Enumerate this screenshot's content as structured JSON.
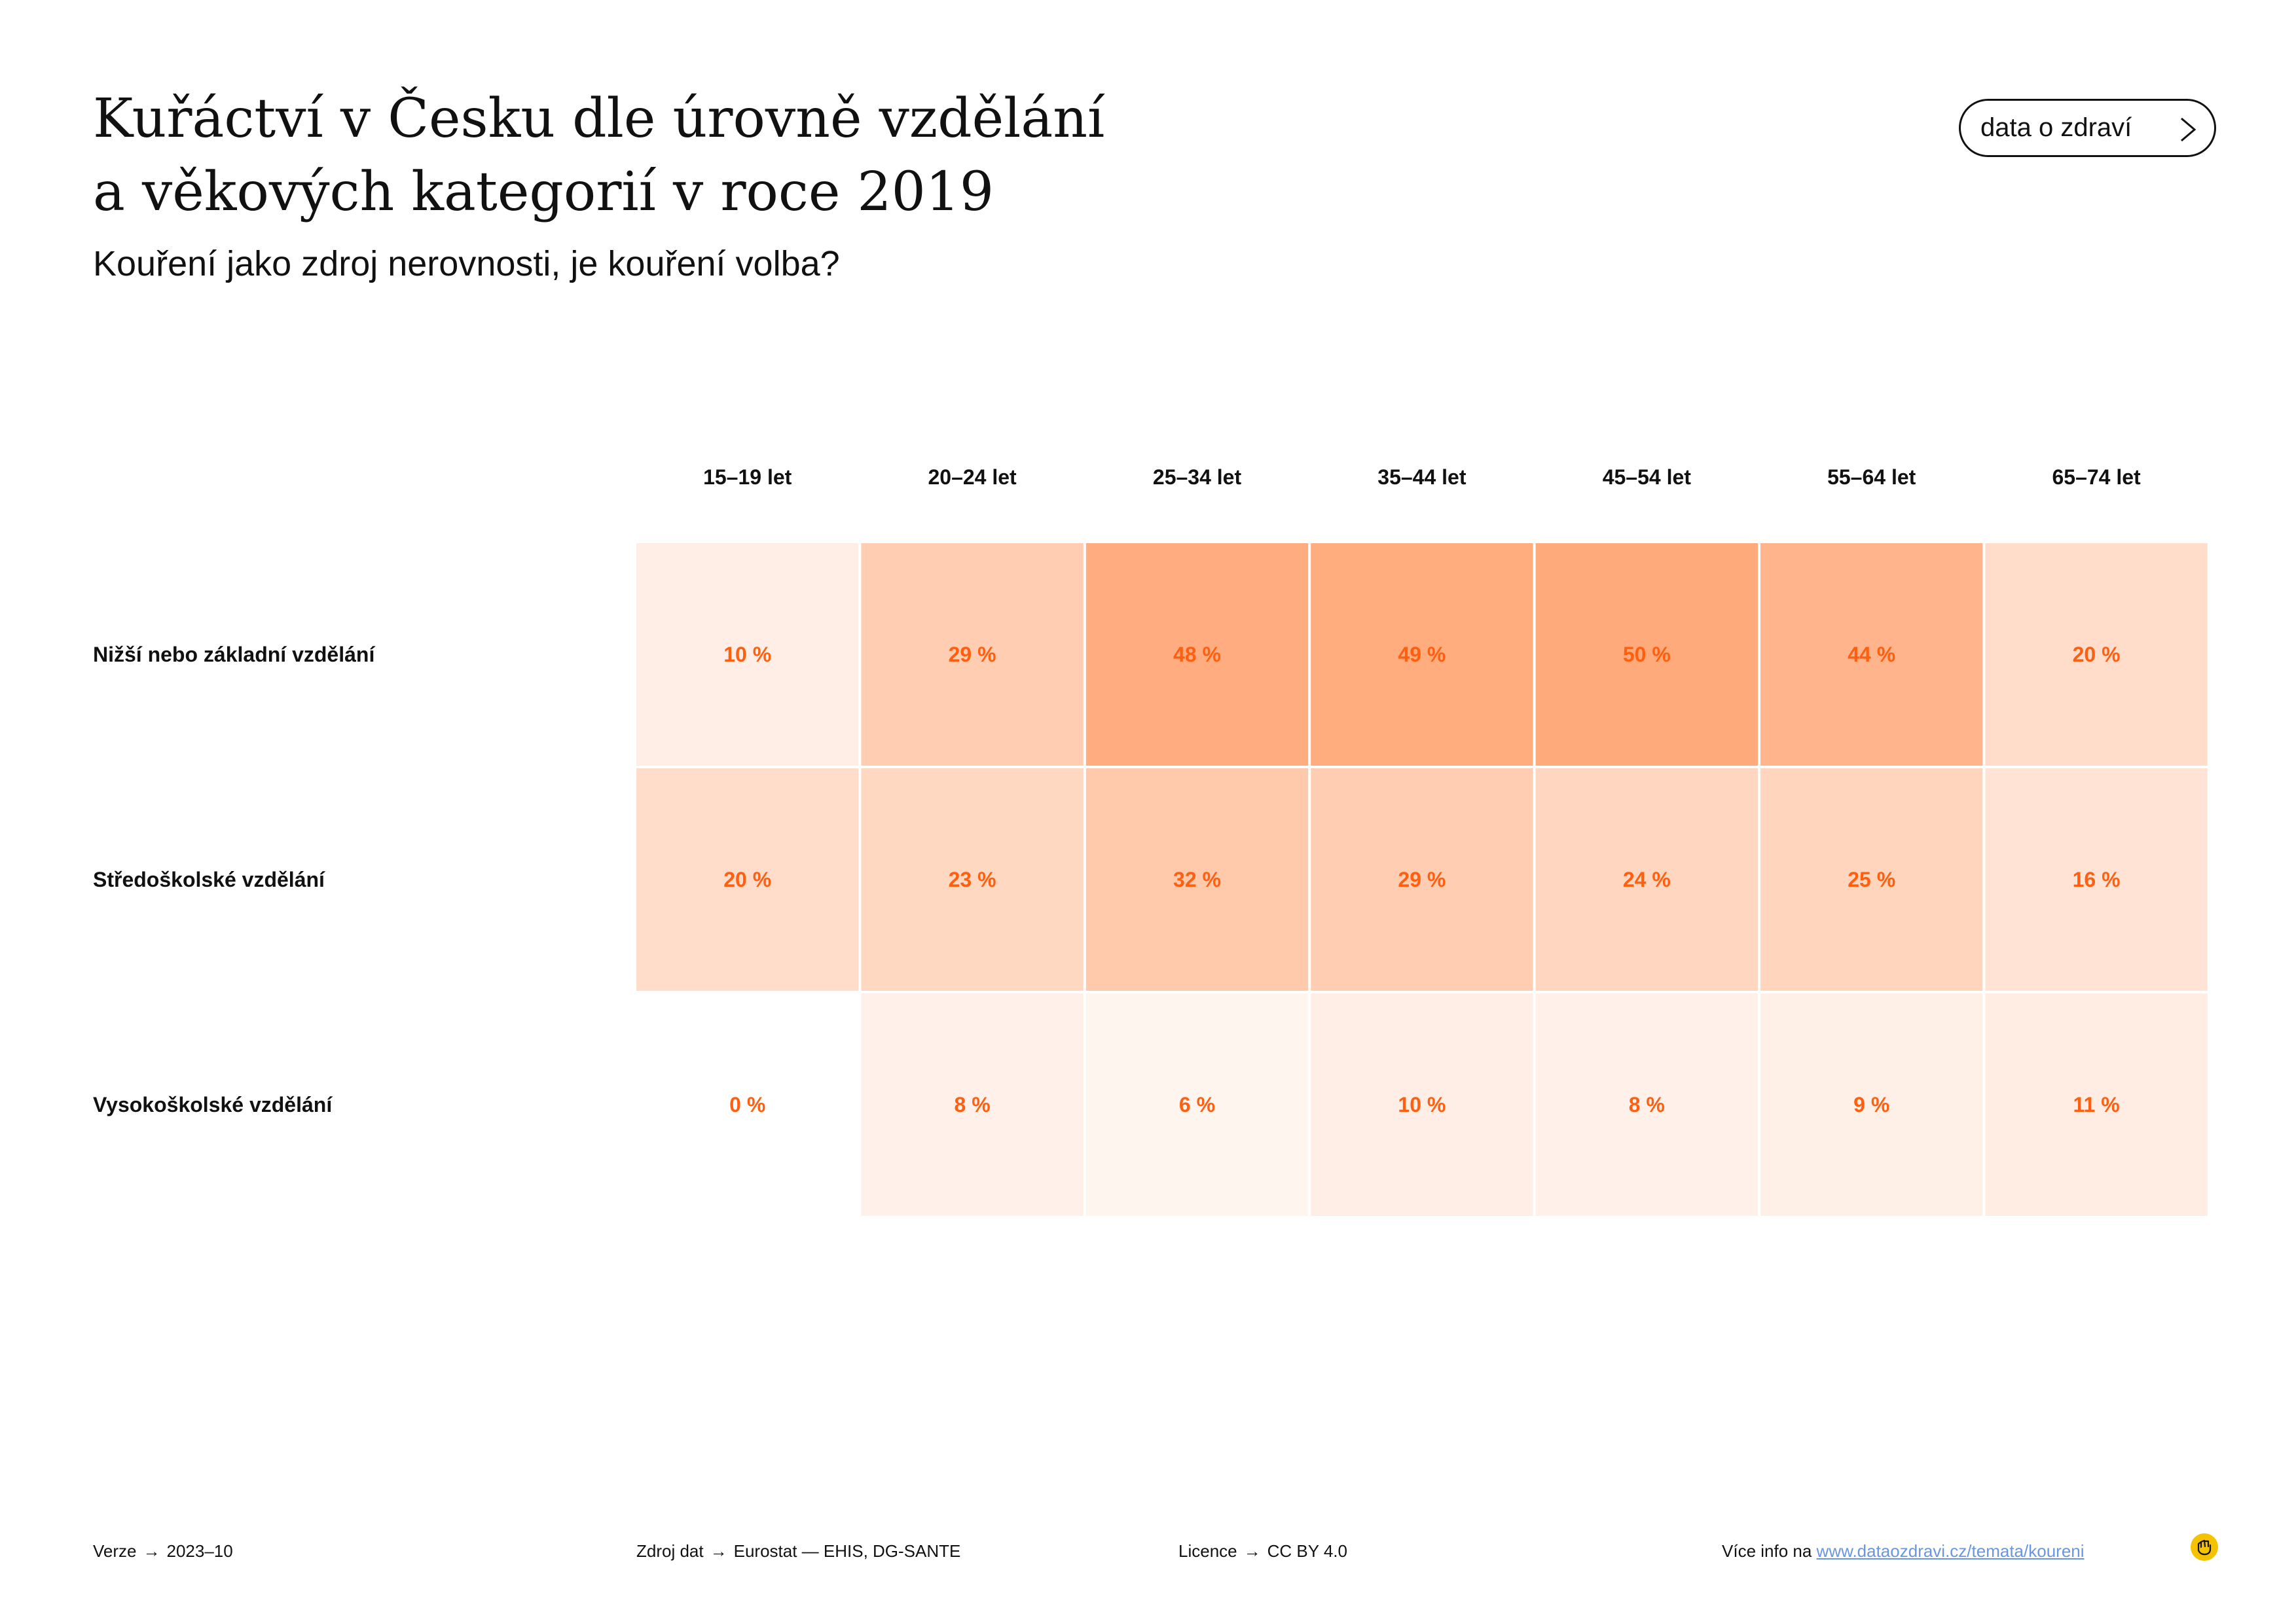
{
  "title_lines": [
    "Kuřáctví v Česku dle úrovně vzdělání",
    "a věkových kategorií v roce 2019"
  ],
  "subtitle": "Kouření jako zdroj nerovnosti, je kouření volba?",
  "nav_button": {
    "label": "data o zdraví",
    "icon": "chevron-right-icon"
  },
  "chart_data": {
    "type": "heatmap",
    "columns": [
      "15–19 let",
      "20–24 let",
      "25–34 let",
      "35–44 let",
      "45–54 let",
      "55–64 let",
      "65–74 let"
    ],
    "rows": [
      "Nižší nebo základní vzdělání",
      "Středoškolské vzdělání",
      "Vysokoškolské vzdělání"
    ],
    "values": [
      [
        10,
        29,
        48,
        49,
        50,
        44,
        20
      ],
      [
        20,
        23,
        32,
        29,
        24,
        25,
        16
      ],
      [
        0,
        8,
        6,
        10,
        8,
        9,
        11
      ]
    ],
    "labels": [
      [
        "10 %",
        "29 %",
        "48 %",
        "49 %",
        "50 %",
        "44 %",
        "20 %"
      ],
      [
        "20 %",
        "23 %",
        "32 %",
        "29 %",
        "24 %",
        "25 %",
        "16 %"
      ],
      [
        "0 %",
        "8 %",
        "6 %",
        "10 %",
        "8 %",
        "9 %",
        "11 %"
      ]
    ],
    "unit": "%",
    "color_min": "#ffffff",
    "color_max": "#ffaa7b",
    "label_color": "#ff5f0f"
  },
  "footer": {
    "version_label": "Verze",
    "version_value": "2023–10",
    "source_label": "Zdroj dat",
    "source_value": "Eurostat — EHIS, DG-SANTE",
    "license_label": "Licence",
    "license_value": "CC BY 4.0",
    "more_label": "Více info na",
    "more_link": "www.dataozdravi.cz/temata/koureni",
    "arrow": "→"
  },
  "logo": {
    "icon": "hand-logo-icon",
    "color": "#f5c200"
  }
}
